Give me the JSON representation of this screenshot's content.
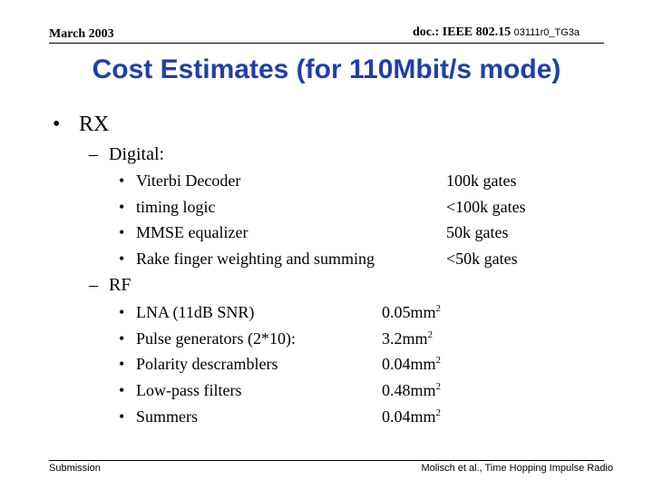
{
  "header": {
    "date": "March 2003",
    "doc_prefix": "doc.: IEEE 802.15",
    "doc_id": "03111r0_TG3a"
  },
  "title": "Cost Estimates (for 110Mbit/s mode)",
  "bullet_l1": "•",
  "bullet_dash": "–",
  "bullet_l3": "•",
  "rx_label": "RX",
  "digital": {
    "label": "Digital:",
    "items": [
      {
        "name": "Viterbi Decoder",
        "value": "100k gates"
      },
      {
        "name": "timing logic",
        "value": "<100k gates"
      },
      {
        "name": "MMSE equalizer",
        "value": "50k gates"
      },
      {
        "name": "Rake finger weighting and summing",
        "value": "<50k gates"
      }
    ]
  },
  "rf": {
    "label": "RF",
    "unit": "mm",
    "unit_exp": "2",
    "items": [
      {
        "name": "LNA (11dB SNR)",
        "value": "0.05"
      },
      {
        "name": "Pulse generators (2*10):",
        "value": "3.2"
      },
      {
        "name": "Polarity descramblers",
        "value": "0.04"
      },
      {
        "name": "Low-pass filters",
        "value": "0.48"
      },
      {
        "name": "Summers",
        "value": "0.04"
      }
    ]
  },
  "footer": {
    "left": "Submission",
    "right": "Molisch et al., Time Hopping Impulse Radio"
  }
}
